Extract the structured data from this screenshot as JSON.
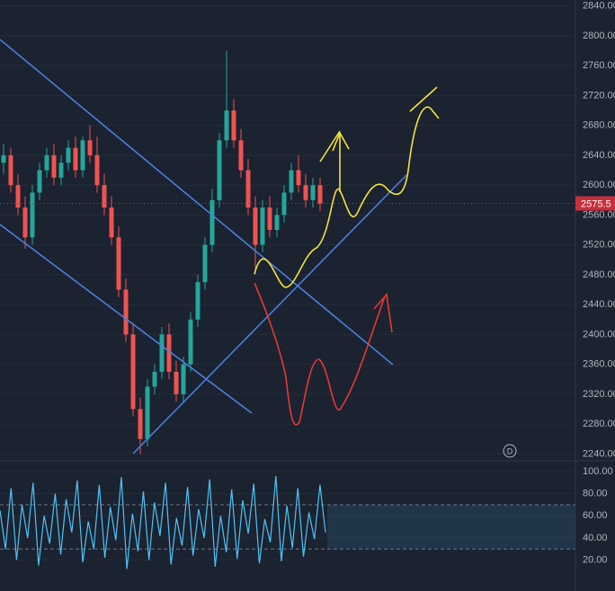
{
  "chart_data": [
    {
      "type": "candlestick",
      "ylim": [
        2232,
        2848
      ],
      "yticks": [
        {
          "value": 2840,
          "label": "2840.00"
        },
        {
          "value": 2800,
          "label": "2800.00"
        },
        {
          "value": 2760,
          "label": "2760.00"
        },
        {
          "value": 2720,
          "label": "2720.00"
        },
        {
          "value": 2680,
          "label": "2680.00"
        },
        {
          "value": 2640,
          "label": "2640.00"
        },
        {
          "value": 2600,
          "label": "2600.00"
        },
        {
          "value": 2560,
          "label": "2560.00"
        },
        {
          "value": 2520,
          "label": "2520.00"
        },
        {
          "value": 2480,
          "label": "2480.00"
        },
        {
          "value": 2440,
          "label": "2440.00"
        },
        {
          "value": 2400,
          "label": "2400.00"
        },
        {
          "value": 2360,
          "label": "2360.00"
        },
        {
          "value": 2320,
          "label": "2320.00"
        },
        {
          "value": 2280,
          "label": "2280.00"
        },
        {
          "value": 2240,
          "label": "2240.00"
        }
      ],
      "open": [
        2630,
        2640,
        2600,
        2570,
        2530,
        2590,
        2620,
        2640,
        2610,
        2630,
        2650,
        2620,
        2660,
        2640,
        2600,
        2570,
        2530,
        2460,
        2400,
        2300,
        2260,
        2330,
        2350,
        2400,
        2350,
        2320,
        2360,
        2420,
        2470,
        2520,
        2580,
        2660,
        2700,
        2660,
        2620,
        2570,
        2520,
        2570,
        2540,
        2560,
        2590,
        2620,
        2600,
        2580,
        2600
      ],
      "high": [
        2655,
        2650,
        2615,
        2585,
        2600,
        2630,
        2650,
        2655,
        2640,
        2660,
        2665,
        2665,
        2680,
        2665,
        2615,
        2585,
        2545,
        2475,
        2415,
        2315,
        2340,
        2360,
        2410,
        2415,
        2365,
        2370,
        2430,
        2480,
        2530,
        2595,
        2670,
        2780,
        2715,
        2675,
        2635,
        2585,
        2580,
        2585,
        2570,
        2600,
        2630,
        2640,
        2615,
        2610,
        2610
      ],
      "low": [
        2615,
        2590,
        2560,
        2515,
        2520,
        2580,
        2610,
        2600,
        2600,
        2620,
        2610,
        2610,
        2630,
        2590,
        2560,
        2520,
        2450,
        2390,
        2290,
        2240,
        2250,
        2320,
        2340,
        2340,
        2310,
        2310,
        2350,
        2410,
        2460,
        2510,
        2570,
        2650,
        2650,
        2610,
        2560,
        2480,
        2510,
        2530,
        2530,
        2550,
        2580,
        2590,
        2570,
        2570,
        2565
      ],
      "close": [
        2640,
        2600,
        2570,
        2530,
        2590,
        2620,
        2640,
        2610,
        2630,
        2650,
        2620,
        2660,
        2640,
        2600,
        2570,
        2530,
        2460,
        2400,
        2300,
        2260,
        2330,
        2350,
        2400,
        2350,
        2320,
        2360,
        2420,
        2470,
        2520,
        2580,
        2660,
        2700,
        2660,
        2620,
        2570,
        2520,
        2570,
        2540,
        2560,
        2590,
        2620,
        2600,
        2580,
        2600,
        2575
      ],
      "up_color": "#26a69a",
      "down_color": "#ef5350",
      "last_price": 2575.5,
      "last_price_color": "#c62f3b",
      "marker": "D",
      "grid": true
    },
    {
      "type": "line",
      "ylim": [
        -8,
        109
      ],
      "yticks": [
        {
          "value": 100,
          "label": "100.00"
        },
        {
          "value": 80,
          "label": "80.00"
        },
        {
          "value": 60,
          "label": "60.00"
        },
        {
          "value": 40,
          "label": "40.00"
        },
        {
          "value": 20,
          "label": "20.00"
        }
      ],
      "bands": [
        30,
        70
      ],
      "values": [
        65,
        30,
        85,
        20,
        70,
        40,
        90,
        15,
        60,
        35,
        80,
        25,
        75,
        45,
        92,
        18,
        55,
        30,
        88,
        22,
        68,
        38,
        95,
        12,
        62,
        28,
        82,
        20,
        72,
        42,
        90,
        16,
        58,
        33,
        86,
        24,
        66,
        40,
        93,
        14,
        60,
        27,
        84,
        21,
        74,
        44,
        89,
        17,
        57,
        36,
        96,
        19,
        69,
        31,
        85,
        23,
        63,
        39,
        88,
        45
      ],
      "color": "#4fc3f7",
      "grid": true
    }
  ]
}
